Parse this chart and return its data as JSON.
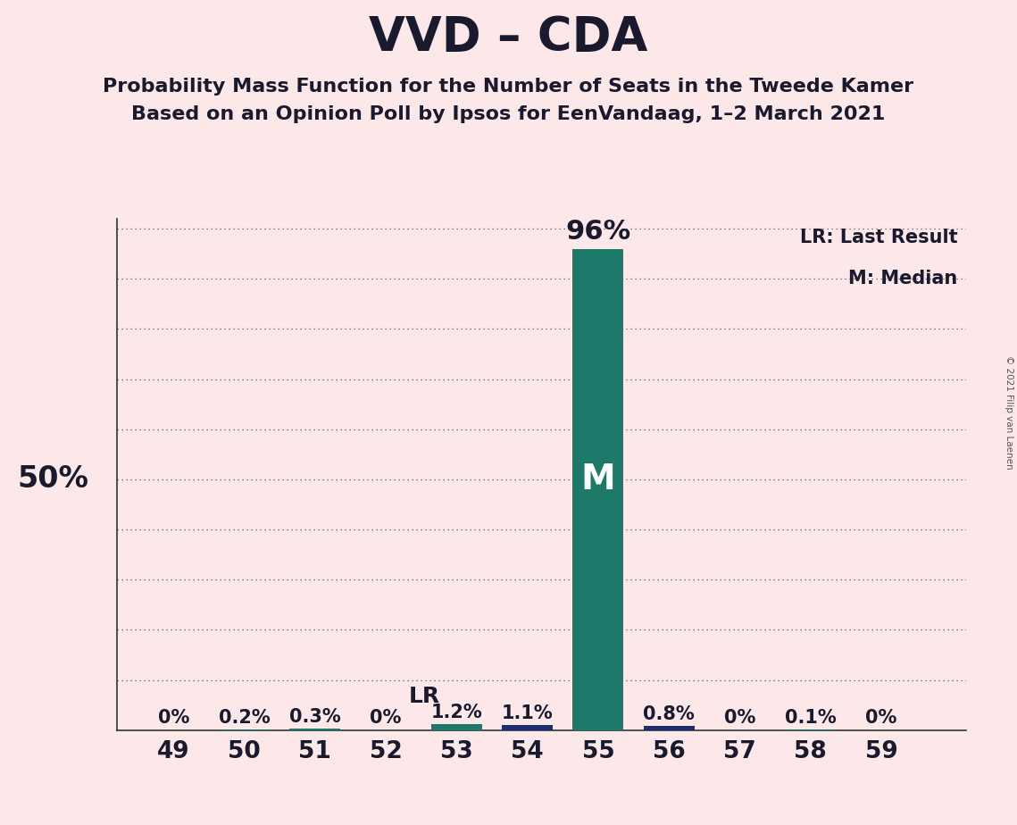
{
  "title": "VVD – CDA",
  "subtitle1": "Probability Mass Function for the Number of Seats in the Tweede Kamer",
  "subtitle2": "Based on an Opinion Poll by Ipsos for EenVandaag, 1–2 March 2021",
  "copyright": "© 2021 Filip van Laenen",
  "seats": [
    49,
    50,
    51,
    52,
    53,
    54,
    55,
    56,
    57,
    58,
    59
  ],
  "values": [
    0.0,
    0.2,
    0.3,
    0.0,
    1.2,
    1.1,
    96.0,
    0.8,
    0.0,
    0.1,
    0.0
  ],
  "bar_colors": [
    "#1d7a6b",
    "#1d7a6b",
    "#1d7a6b",
    "#1d7a6b",
    "#1d7a6b",
    "#1e2d6e",
    "#1d7a6b",
    "#1e2d6e",
    "#1d7a6b",
    "#1d7a6b",
    "#1d7a6b"
  ],
  "median_seat": 55,
  "lr_seat": 52,
  "background_color": "#fce8e8",
  "ylabel_50": "50%",
  "legend_lr": "LR: Last Result",
  "legend_m": "M: Median",
  "ylim": [
    0,
    102
  ],
  "grid_lines": [
    10,
    20,
    30,
    40,
    50,
    60,
    70,
    80,
    90,
    100
  ],
  "title_fontsize": 38,
  "subtitle_fontsize": 16,
  "bar_width": 0.72,
  "value_label_fontsize": 15,
  "tick_label_fontsize": 19
}
